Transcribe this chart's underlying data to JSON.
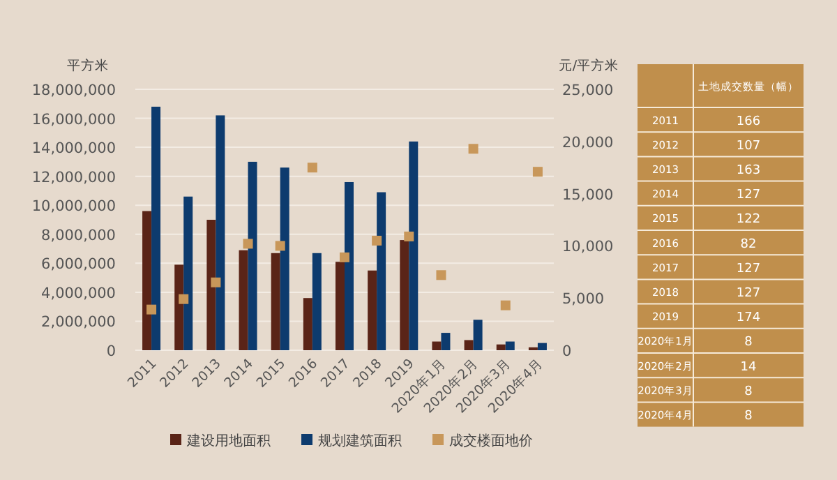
{
  "chart_data": [
    {
      "type": "bar",
      "ylabel": "平方米",
      "y2label": "元/平方米",
      "categories": [
        "2011",
        "2012",
        "2013",
        "2014",
        "2015",
        "2016",
        "2017",
        "2018",
        "2019",
        "2020年1月",
        "2020年2月",
        "2020年3月",
        "2020年4月"
      ],
      "series": [
        {
          "name": "建设用地面积",
          "color": "#5a2417",
          "values": [
            9600000,
            5900000,
            9000000,
            6900000,
            6700000,
            3600000,
            6100000,
            5500000,
            7600000,
            600000,
            700000,
            400000,
            200000
          ]
        },
        {
          "name": "规划建筑面积",
          "color": "#0d3b6e",
          "values": [
            16800000,
            10600000,
            16200000,
            13000000,
            12600000,
            6700000,
            11600000,
            10900000,
            14400000,
            1200000,
            2100000,
            600000,
            500000
          ]
        },
        {
          "name": "成交楼面地价",
          "color": "#c8975a",
          "type": "scatter",
          "axis": "y2",
          "marker": "square",
          "values": [
            3900,
            4900,
            6500,
            10200,
            10000,
            17500,
            8900,
            10500,
            10900,
            7200,
            19300,
            4300,
            17100
          ]
        }
      ],
      "ylim": [
        0,
        18000000
      ],
      "yticks": [
        0,
        {
          "value": 2000000,
          "label": "2,000,000"
        },
        {
          "value": 4000000,
          "label": "4,000,000"
        },
        {
          "value": 6000000,
          "label": "6,000,000"
        },
        {
          "value": 8000000,
          "label": "8,000,000"
        },
        {
          "value": 10000000,
          "label": "10,000,000"
        },
        {
          "value": 12000000,
          "label": "12,000,000"
        },
        {
          "value": 14000000,
          "label": "14,000,000"
        },
        {
          "value": 16000000,
          "label": "16,000,000"
        },
        {
          "value": 18000000,
          "label": "18,000,000"
        }
      ],
      "y2lim": [
        0,
        25000
      ],
      "y2ticks": [
        0,
        {
          "value": 5000,
          "label": "5,000"
        },
        {
          "value": 10000,
          "label": "10,000"
        },
        {
          "value": 15000,
          "label": "15,000"
        },
        {
          "value": 20000,
          "label": "20,000"
        },
        {
          "value": 25000,
          "label": "25,000"
        }
      ],
      "grid": "y",
      "legend": "bottom"
    },
    {
      "type": "heatmap",
      "categories": [
        "土地成交数量（幅）"
      ],
      "y_categories": [
        "2011",
        "2012",
        "2013",
        "2014",
        "2015",
        "2016",
        "2017",
        "2018",
        "2019",
        "2020年1月",
        "2020年2月",
        "2020年3月",
        "2020年4月"
      ],
      "cells": [
        [
          166
        ],
        [
          107
        ],
        [
          163
        ],
        [
          127
        ],
        [
          122
        ],
        [
          82
        ],
        [
          127
        ],
        [
          127
        ],
        [
          174
        ],
        [
          8
        ],
        [
          14
        ],
        [
          8
        ],
        [
          8
        ]
      ],
      "data_labels": true
    }
  ]
}
